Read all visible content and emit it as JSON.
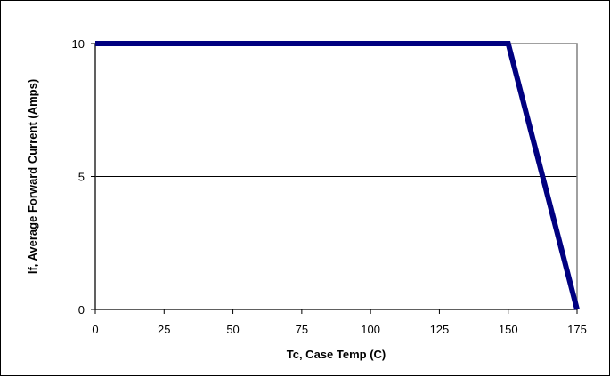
{
  "chart_data": {
    "type": "line",
    "title": "",
    "xlabel": "Tc, Case Temp (C)",
    "ylabel": "If, Average Forward Current (Amps)",
    "xlim": [
      0,
      175
    ],
    "ylim": [
      0,
      10
    ],
    "x_ticks": [
      "0",
      "25",
      "50",
      "75",
      "100",
      "125",
      "150",
      "175"
    ],
    "y_ticks": [
      "0",
      "5",
      "10"
    ],
    "grid": "horizontal major gridlines",
    "legend": "none",
    "series": [
      {
        "points": [
          [
            0,
            10
          ],
          [
            150,
            10
          ],
          [
            175,
            0
          ]
        ],
        "color": "#000080"
      }
    ]
  }
}
